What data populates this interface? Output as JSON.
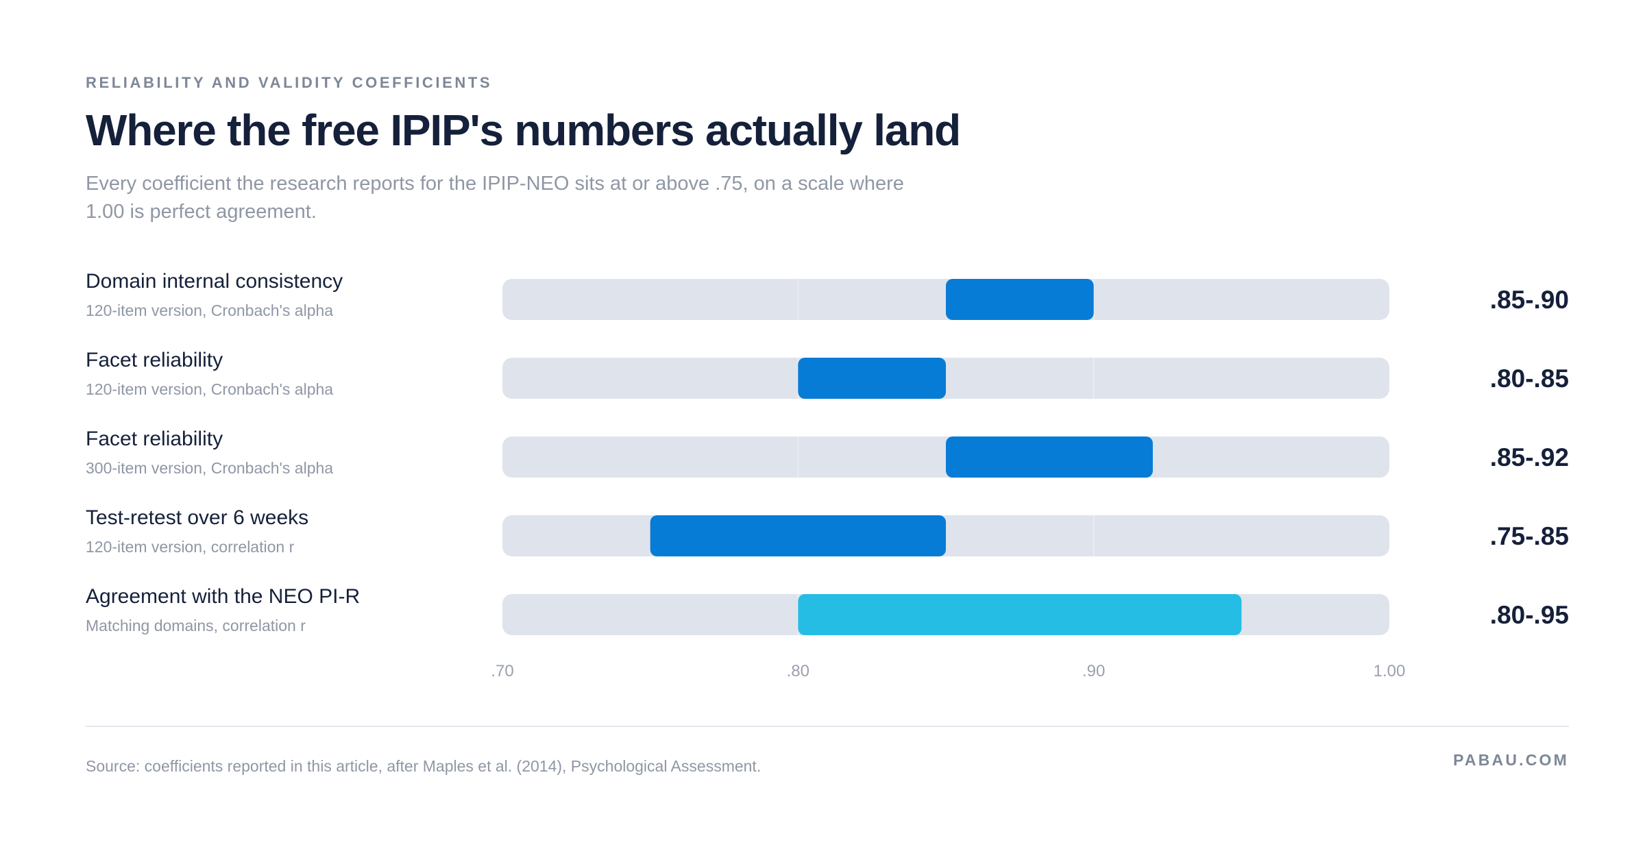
{
  "header": {
    "eyebrow": "RELIABILITY AND VALIDITY COEFFICIENTS",
    "title": "Where the free IPIP's numbers actually land",
    "subtitle": "Every coefficient the research reports for the IPIP-NEO sits at or above .75, on a scale where 1.00 is perfect agreement."
  },
  "chart_data": {
    "type": "bar",
    "orientation": "horizontal-range",
    "xlim": [
      0.7,
      1.0
    ],
    "x_ticks": [
      ".70",
      ".80",
      ".90",
      "1.00"
    ],
    "x_tick_values": [
      0.7,
      0.8,
      0.9,
      1.0
    ],
    "grid": true,
    "rows": [
      {
        "label": "Domain internal consistency",
        "sublabel": "120-item version, Cronbach's alpha",
        "low": 0.85,
        "high": 0.9,
        "range_label": ".85-.90",
        "color": "#077cd6"
      },
      {
        "label": "Facet reliability",
        "sublabel": "120-item version, Cronbach's alpha",
        "low": 0.8,
        "high": 0.85,
        "range_label": ".80-.85",
        "color": "#077cd6"
      },
      {
        "label": "Facet reliability",
        "sublabel": "300-item version, Cronbach's alpha",
        "low": 0.85,
        "high": 0.92,
        "range_label": ".85-.92",
        "color": "#077cd6"
      },
      {
        "label": "Test-retest over 6 weeks",
        "sublabel": "120-item version, correlation r",
        "low": 0.75,
        "high": 0.85,
        "range_label": ".75-.85",
        "color": "#077cd6"
      },
      {
        "label": "Agreement with the NEO PI-R",
        "sublabel": "Matching domains, correlation r",
        "low": 0.8,
        "high": 0.95,
        "range_label": ".80-.95",
        "color": "#25bde3"
      }
    ],
    "track_color": "#dfe3ec"
  },
  "footer": {
    "source": "Source: coefficients reported in this article, after Maples et al. (2014), Psychological Assessment.",
    "brand": "PABAU.COM"
  }
}
